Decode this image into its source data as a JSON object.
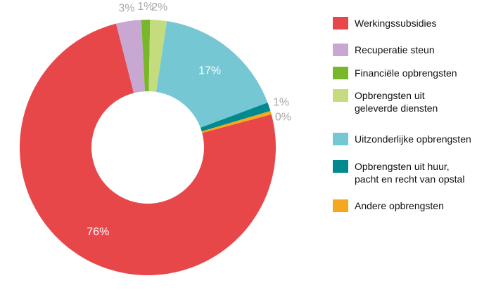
{
  "chart_data": {
    "type": "donut",
    "categories": [
      "Werkingssubsidies",
      "Recuperatie steun",
      "Financiële opbrengsten",
      "Opbrengsten uit\ngeleverde diensten",
      "Uitzonderlijke opbrengsten",
      "Opbrengsten uit huur,\npacht en recht van opstal",
      "Andere opbrengsten"
    ],
    "values": [
      75.6,
      3.2,
      1.1,
      2.1,
      17.0,
      1.1,
      0.45
    ],
    "value_labels": [
      "76%",
      "3%",
      "1%",
      "2%",
      "17%",
      "1%",
      "0%"
    ],
    "colors": [
      "#e8474a",
      "#c8a8d2",
      "#78b72a",
      "#c5dc7e",
      "#75c8d3",
      "#00898e",
      "#f5a81d"
    ]
  }
}
